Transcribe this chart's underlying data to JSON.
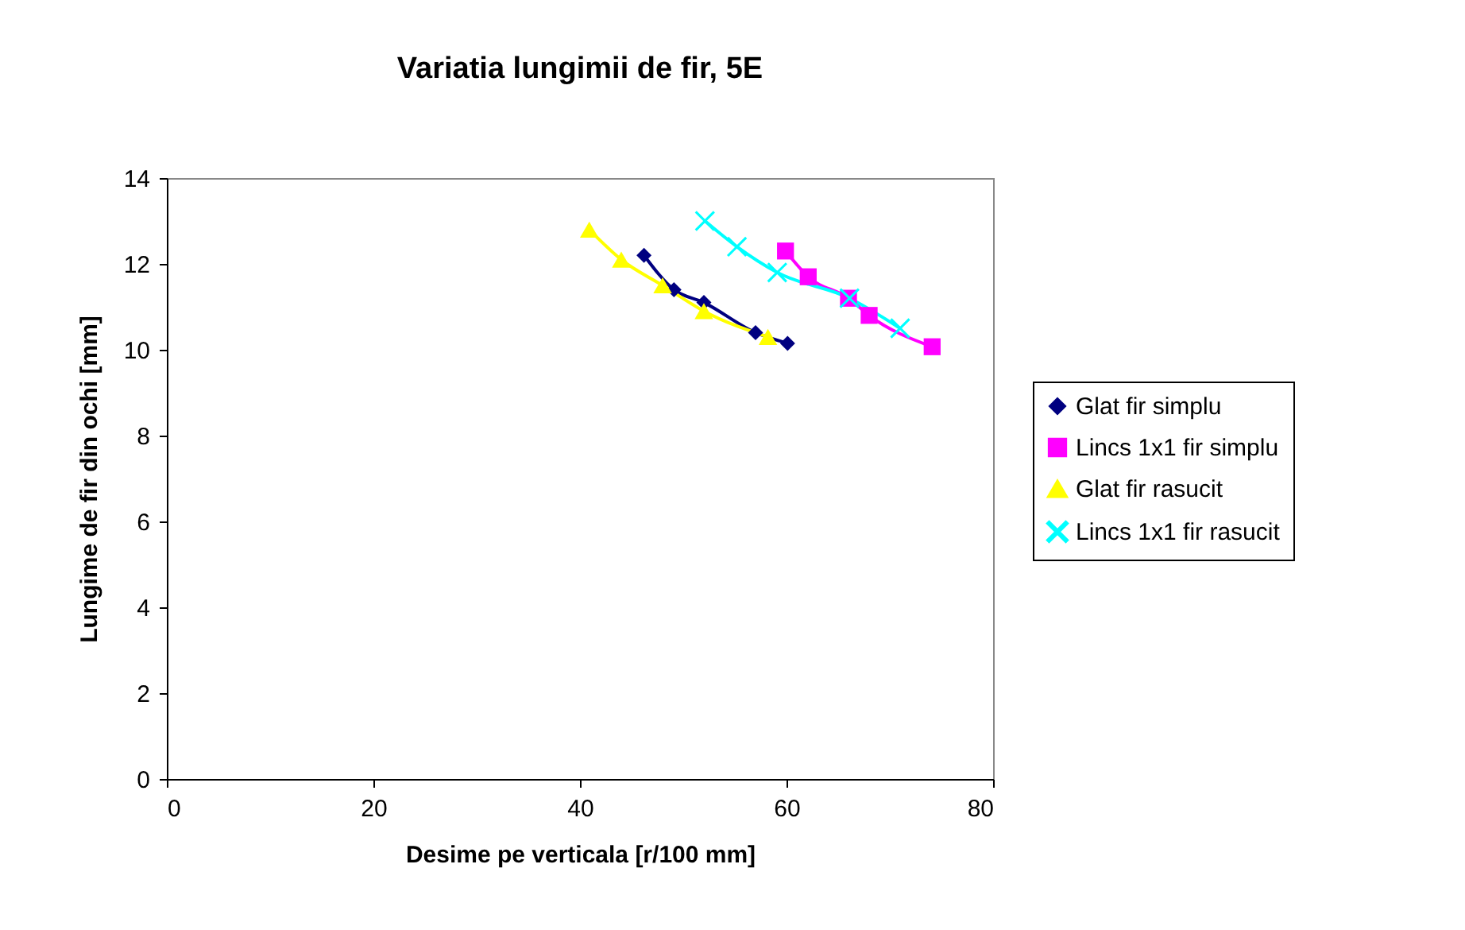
{
  "chart_data": {
    "type": "line",
    "title": "Variatia lungimii de fir, 5E",
    "xlabel": "Desime pe verticala [r/100 mm]",
    "ylabel": "Lungime de fir din ochi [mm]",
    "xlim": [
      0,
      80
    ],
    "xticks": [
      0,
      20,
      40,
      60,
      80
    ],
    "ylim": [
      0,
      14
    ],
    "yticks": [
      0,
      2,
      4,
      6,
      8,
      10,
      12,
      14
    ],
    "grid": false,
    "legend": "right",
    "series": [
      {
        "name": "Glat fir simplu",
        "color": "#000080",
        "marker": "diamond",
        "x": [
          46.2,
          49.1,
          52,
          57,
          60.1
        ],
        "values": [
          12.2,
          11.4,
          11.1,
          10.4,
          10.15
        ]
      },
      {
        "name": "Lincs 1x1 fir simplu",
        "color": "#ff00ff",
        "marker": "square",
        "x": [
          59.9,
          62.1,
          66,
          68,
          74.1
        ],
        "values": [
          12.3,
          11.7,
          11.2,
          10.8,
          10.07
        ]
      },
      {
        "name": "Glat fir rasucit",
        "color": "#ffff00",
        "marker": "triangle",
        "x": [
          40.9,
          44,
          48,
          52,
          58.2
        ],
        "values": [
          12.8,
          12.1,
          11.5,
          10.9,
          10.3
        ]
      },
      {
        "name": "Lincs 1x1 fir rasucit",
        "color": "#00ffff",
        "marker": "cross",
        "x": [
          52.1,
          55.2,
          59.1,
          66.1,
          71
        ],
        "values": [
          13.0,
          12.4,
          11.8,
          11.2,
          10.5
        ]
      }
    ]
  }
}
